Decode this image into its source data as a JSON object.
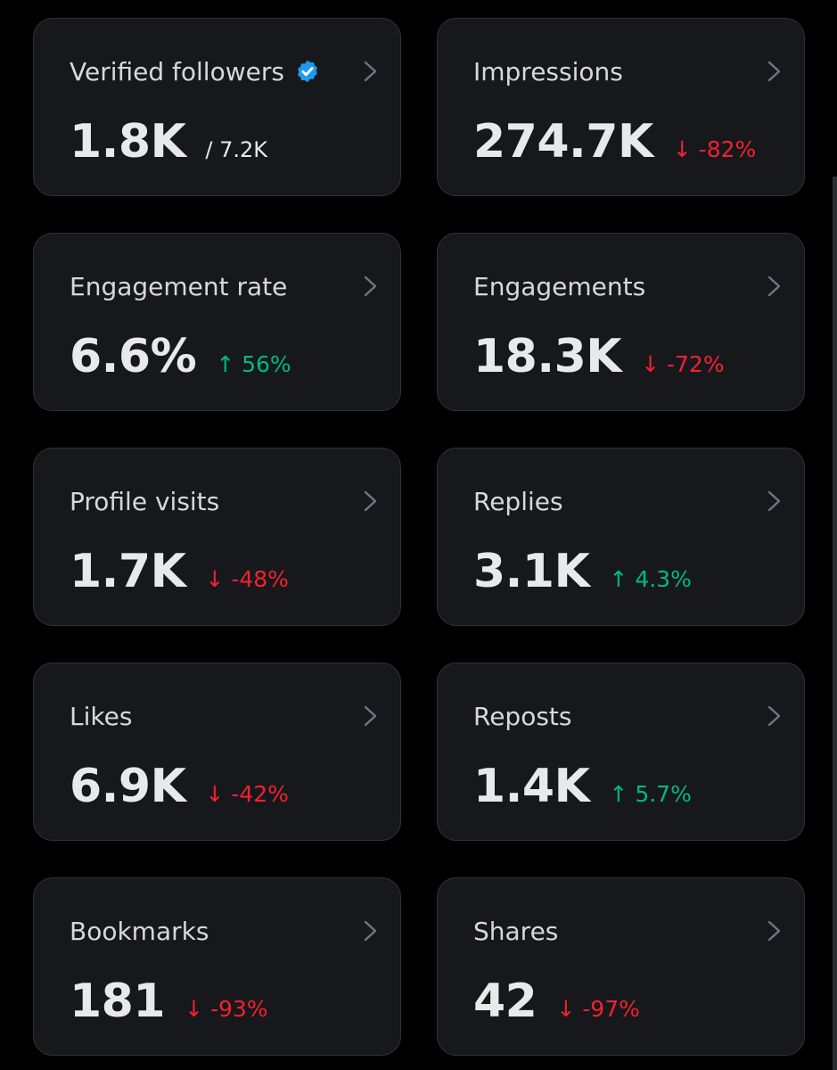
{
  "cards": [
    {
      "label": "Verified followers",
      "value": "1.8K",
      "sub": "/ 7.2K",
      "change": "",
      "direction": ""
    },
    {
      "label": "Impressions",
      "value": "274.7K",
      "sub": "",
      "change": "↓ -82%",
      "direction": "down"
    },
    {
      "label": "Engagement rate",
      "value": "6.6%",
      "sub": "",
      "change": "↑ 56%",
      "direction": "up"
    },
    {
      "label": "Engagements",
      "value": "18.3K",
      "sub": "",
      "change": "↓ -72%",
      "direction": "down"
    },
    {
      "label": "Profile visits",
      "value": "1.7K",
      "sub": "",
      "change": "↓ -48%",
      "direction": "down"
    },
    {
      "label": "Replies",
      "value": "3.1K",
      "sub": "",
      "change": "↑ 4.3%",
      "direction": "up"
    },
    {
      "label": "Likes",
      "value": "6.9K",
      "sub": "",
      "change": "↓ -42%",
      "direction": "down"
    },
    {
      "label": "Reposts",
      "value": "1.4K",
      "sub": "",
      "change": "↑ 5.7%",
      "direction": "up"
    },
    {
      "label": "Bookmarks",
      "value": "181",
      "sub": "",
      "change": "↓ -93%",
      "direction": "down"
    },
    {
      "label": "Shares",
      "value": "42",
      "sub": "",
      "change": "↓ -97%",
      "direction": "down"
    }
  ],
  "colors": {
    "up": "#00ba7c",
    "down": "#f4212e",
    "verified": "#1d9bf0"
  },
  "icons": {
    "verified": "verified-badge-icon",
    "chevron": "chevron-right-icon"
  }
}
